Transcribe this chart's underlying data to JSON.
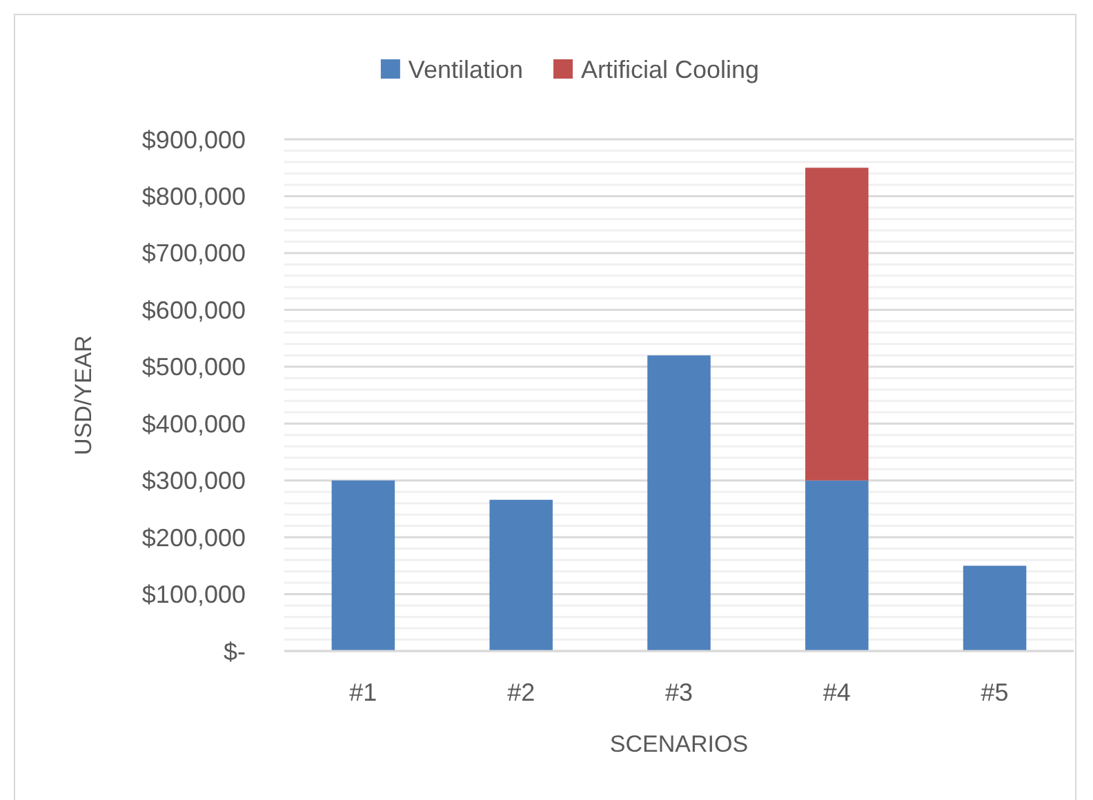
{
  "chart_data": {
    "type": "bar",
    "stacked": true,
    "categories": [
      "#1",
      "#2",
      "#3",
      "#4",
      "#5"
    ],
    "series": [
      {
        "name": "Ventilation",
        "color": "#4f81bd",
        "values": [
          300000,
          266000,
          520000,
          300000,
          150000
        ]
      },
      {
        "name": "Artificial Cooling",
        "color": "#c0504d",
        "values": [
          null,
          null,
          null,
          550000,
          null
        ]
      }
    ],
    "xlabel": "SCENARIOS",
    "ylabel": "USD/YEAR",
    "ylim": [
      0,
      900000
    ],
    "yticks": [
      {
        "value": 0,
        "label": "$-"
      },
      {
        "value": 20000,
        "label": null
      },
      {
        "value": 40000,
        "label": null
      },
      {
        "value": 60000,
        "label": null
      },
      {
        "value": 80000,
        "label": null
      },
      {
        "value": 100000,
        "label": "$100,000"
      },
      {
        "value": 120000,
        "label": null
      },
      {
        "value": 140000,
        "label": null
      },
      {
        "value": 160000,
        "label": null
      },
      {
        "value": 180000,
        "label": null
      },
      {
        "value": 200000,
        "label": "$200,000"
      },
      {
        "value": 220000,
        "label": null
      },
      {
        "value": 240000,
        "label": null
      },
      {
        "value": 260000,
        "label": null
      },
      {
        "value": 280000,
        "label": null
      },
      {
        "value": 300000,
        "label": "$300,000"
      },
      {
        "value": 320000,
        "label": null
      },
      {
        "value": 340000,
        "label": null
      },
      {
        "value": 360000,
        "label": null
      },
      {
        "value": 380000,
        "label": null
      },
      {
        "value": 400000,
        "label": "$400,000"
      },
      {
        "value": 420000,
        "label": null
      },
      {
        "value": 440000,
        "label": null
      },
      {
        "value": 460000,
        "label": null
      },
      {
        "value": 480000,
        "label": null
      },
      {
        "value": 500000,
        "label": "$500,000"
      },
      {
        "value": 520000,
        "label": null
      },
      {
        "value": 540000,
        "label": null
      },
      {
        "value": 560000,
        "label": null
      },
      {
        "value": 580000,
        "label": null
      },
      {
        "value": 600000,
        "label": "$600,000"
      },
      {
        "value": 620000,
        "label": null
      },
      {
        "value": 640000,
        "label": null
      },
      {
        "value": 660000,
        "label": null
      },
      {
        "value": 680000,
        "label": null
      },
      {
        "value": 700000,
        "label": "$700,000"
      },
      {
        "value": 720000,
        "label": null
      },
      {
        "value": 740000,
        "label": null
      },
      {
        "value": 760000,
        "label": null
      },
      {
        "value": 780000,
        "label": null
      },
      {
        "value": 800000,
        "label": "$800,000"
      },
      {
        "value": 820000,
        "label": null
      },
      {
        "value": 840000,
        "label": null
      },
      {
        "value": 860000,
        "label": null
      },
      {
        "value": 880000,
        "label": null
      },
      {
        "value": 900000,
        "label": "$900,000"
      }
    ],
    "grid": "y",
    "legend": "top"
  }
}
